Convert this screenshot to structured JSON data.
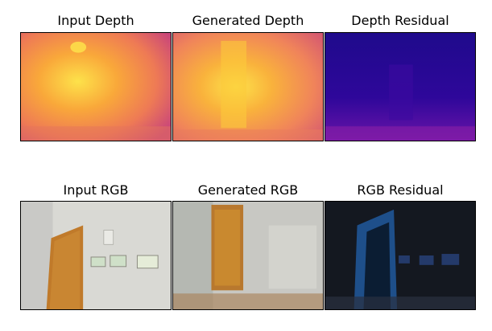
{
  "figure": {
    "rows": [
      {
        "panels": [
          {
            "title": "Input Depth",
            "kind": "depth-map"
          },
          {
            "title": "Generated Depth",
            "kind": "depth-map"
          },
          {
            "title": "Depth Residual",
            "kind": "residual-map"
          }
        ]
      },
      {
        "panels": [
          {
            "title": "Input RGB",
            "kind": "photo"
          },
          {
            "title": "Generated RGB",
            "kind": "photo"
          },
          {
            "title": "RGB Residual",
            "kind": "residual-photo"
          }
        ]
      }
    ],
    "colors": {
      "plasma_dark": "#3b049a",
      "plasma_mid": "#cc4778",
      "plasma_bright": "#fdca26",
      "door": "#c07a2a",
      "wall": "#d8d8d2"
    }
  }
}
